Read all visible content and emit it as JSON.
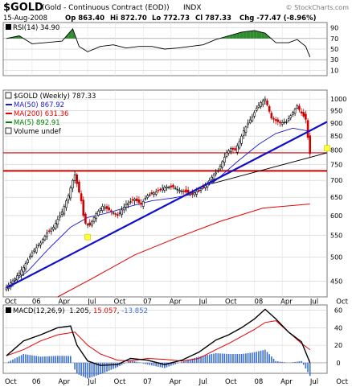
{
  "header": {
    "symbol": "$GOLD",
    "name": "(Gold - Continuous Contract (EOD))",
    "exchange": "INDX",
    "watermark": "© StockCharts.com",
    "date": "15-Aug-2008",
    "op": "Op 863.40",
    "hi": "Hi 872.70",
    "lo": "Lo 772.73",
    "cl": "Cl 787.33",
    "chg": "Chg -77.47 (-8.96%)"
  },
  "colors": {
    "up_candle": "#000000",
    "down_candle": "#cc0000",
    "ma50": "#1a1acc",
    "ma200": "#e60000",
    "ma5": "#008000",
    "trend_blue": "#1010c8",
    "trend_black": "#000000",
    "hline_red": "#cc0000",
    "macd_line": "#000000",
    "signal_line": "#e60000",
    "histogram": "#3a6fd0",
    "rsi_line": "#000000",
    "rsi_fill": "#2e8b2e",
    "marker": "#ffff33",
    "grid": "#cccccc",
    "border": "#7a7a7a"
  },
  "rsi_panel": {
    "label": "RSI(14) 34.90",
    "ticks": [
      "90",
      "70",
      "50",
      "30",
      "10"
    ]
  },
  "price_panel": {
    "legend": [
      {
        "text": "$GOLD (Weekly) 787.33",
        "color": "#000000"
      },
      {
        "text": "MA(50) 867.92",
        "color": "#1a1acc"
      },
      {
        "text": "MA(200) 631.36",
        "color": "#e60000"
      },
      {
        "text": "MA(5) 892.91",
        "color": "#008000"
      },
      {
        "text": "Volume undef",
        "color": "#000000"
      }
    ],
    "yticks": [
      "1000",
      "950",
      "900",
      "850",
      "800",
      "750",
      "700",
      "650",
      "600",
      "550",
      "500",
      "450"
    ]
  },
  "macd_panel": {
    "label_prefix": "MACD(12,26,9)",
    "macd_value": "1.205",
    "signal_value": "15.057",
    "hist_value": "-13.852",
    "yticks": [
      "60",
      "40",
      "20",
      "0"
    ]
  },
  "xaxis": {
    "labels": [
      "Oct",
      "06",
      "Apr",
      "Jul",
      "Oct",
      "07",
      "Apr",
      "Jul",
      "Oct",
      "08",
      "Apr",
      "Jul",
      "Oct"
    ]
  },
  "chart_data": {
    "type": "candlestick",
    "title": "$GOLD (Gold - Continuous Contract (EOD)) INDX",
    "period": "Weekly",
    "x_unit": "weeks since start of Oct 2005",
    "ylim": [
      420,
      1040
    ],
    "yscale": "log",
    "price": [
      [
        0,
        438
      ],
      [
        4,
        455
      ],
      [
        8,
        478
      ],
      [
        12,
        510
      ],
      [
        16,
        532
      ],
      [
        19,
        556
      ],
      [
        22,
        570
      ],
      [
        26,
        610
      ],
      [
        29,
        655
      ],
      [
        31,
        700
      ],
      [
        32,
        718
      ],
      [
        33,
        690
      ],
      [
        35,
        640
      ],
      [
        36,
        600
      ],
      [
        37,
        580
      ],
      [
        39,
        575
      ],
      [
        42,
        605
      ],
      [
        45,
        625
      ],
      [
        48,
        615
      ],
      [
        52,
        600
      ],
      [
        56,
        630
      ],
      [
        60,
        645
      ],
      [
        63,
        630
      ],
      [
        66,
        655
      ],
      [
        70,
        665
      ],
      [
        74,
        680
      ],
      [
        78,
        680
      ],
      [
        81,
        670
      ],
      [
        84,
        665
      ],
      [
        87,
        660
      ],
      [
        90,
        670
      ],
      [
        94,
        690
      ],
      [
        96,
        710
      ],
      [
        99,
        730
      ],
      [
        101,
        760
      ],
      [
        103,
        790
      ],
      [
        105,
        805
      ],
      [
        107,
        800
      ],
      [
        109,
        830
      ],
      [
        111,
        870
      ],
      [
        113,
        900
      ],
      [
        115,
        925
      ],
      [
        117,
        960
      ],
      [
        119,
        985
      ],
      [
        121,
        1000
      ],
      [
        122,
        975
      ],
      [
        124,
        920
      ],
      [
        126,
        910
      ],
      [
        128,
        900
      ],
      [
        131,
        905
      ],
      [
        133,
        930
      ],
      [
        136,
        970
      ],
      [
        138,
        940
      ],
      [
        140,
        915
      ],
      [
        141,
        845
      ],
      [
        142,
        787
      ]
    ],
    "ma50": [
      [
        0,
        438
      ],
      [
        10,
        470
      ],
      [
        20,
        520
      ],
      [
        30,
        570
      ],
      [
        38,
        595
      ],
      [
        48,
        608
      ],
      [
        58,
        625
      ],
      [
        68,
        640
      ],
      [
        78,
        648
      ],
      [
        88,
        660
      ],
      [
        98,
        700
      ],
      [
        108,
        760
      ],
      [
        118,
        820
      ],
      [
        126,
        860
      ],
      [
        134,
        880
      ],
      [
        142,
        868
      ]
    ],
    "ma200": [
      [
        24,
        420
      ],
      [
        40,
        455
      ],
      [
        60,
        505
      ],
      [
        80,
        545
      ],
      [
        100,
        585
      ],
      [
        120,
        620
      ],
      [
        142,
        631
      ]
    ],
    "trend_blue": [
      [
        0,
        437
      ],
      [
        150,
        905
      ]
    ],
    "trend_black": [
      [
        96,
        690
      ],
      [
        150,
        790
      ]
    ],
    "hlines": [
      790,
      730
    ],
    "marker_points": [
      [
        38,
        546
      ],
      [
        150,
        806
      ]
    ],
    "rsi": [
      [
        0,
        70
      ],
      [
        6,
        75
      ],
      [
        12,
        60
      ],
      [
        18,
        62
      ],
      [
        26,
        65
      ],
      [
        31,
        88
      ],
      [
        34,
        55
      ],
      [
        38,
        45
      ],
      [
        44,
        55
      ],
      [
        50,
        58
      ],
      [
        56,
        52
      ],
      [
        62,
        55
      ],
      [
        68,
        55
      ],
      [
        74,
        50
      ],
      [
        80,
        52
      ],
      [
        86,
        55
      ],
      [
        92,
        58
      ],
      [
        98,
        68
      ],
      [
        104,
        75
      ],
      [
        110,
        82
      ],
      [
        116,
        85
      ],
      [
        121,
        80
      ],
      [
        126,
        62
      ],
      [
        132,
        62
      ],
      [
        136,
        68
      ],
      [
        140,
        55
      ],
      [
        142,
        35
      ]
    ],
    "macd": [
      [
        0,
        8
      ],
      [
        8,
        25
      ],
      [
        16,
        32
      ],
      [
        24,
        40
      ],
      [
        30,
        42
      ],
      [
        33,
        20
      ],
      [
        38,
        2
      ],
      [
        44,
        -3
      ],
      [
        52,
        -2
      ],
      [
        58,
        5
      ],
      [
        66,
        3
      ],
      [
        74,
        -2
      ],
      [
        82,
        3
      ],
      [
        90,
        12
      ],
      [
        98,
        26
      ],
      [
        104,
        32
      ],
      [
        110,
        40
      ],
      [
        116,
        50
      ],
      [
        121,
        61
      ],
      [
        126,
        50
      ],
      [
        132,
        35
      ],
      [
        138,
        24
      ],
      [
        142,
        0
      ]
    ],
    "signal": [
      [
        0,
        8
      ],
      [
        8,
        15
      ],
      [
        16,
        25
      ],
      [
        24,
        32
      ],
      [
        32,
        35
      ],
      [
        38,
        20
      ],
      [
        44,
        10
      ],
      [
        52,
        3
      ],
      [
        58,
        2
      ],
      [
        66,
        5
      ],
      [
        74,
        4
      ],
      [
        82,
        2
      ],
      [
        90,
        5
      ],
      [
        98,
        15
      ],
      [
        104,
        22
      ],
      [
        110,
        30
      ],
      [
        116,
        38
      ],
      [
        121,
        46
      ],
      [
        126,
        48
      ],
      [
        132,
        35
      ],
      [
        138,
        22
      ],
      [
        142,
        15
      ]
    ],
    "macd_ylim": [
      -12,
      66
    ]
  }
}
